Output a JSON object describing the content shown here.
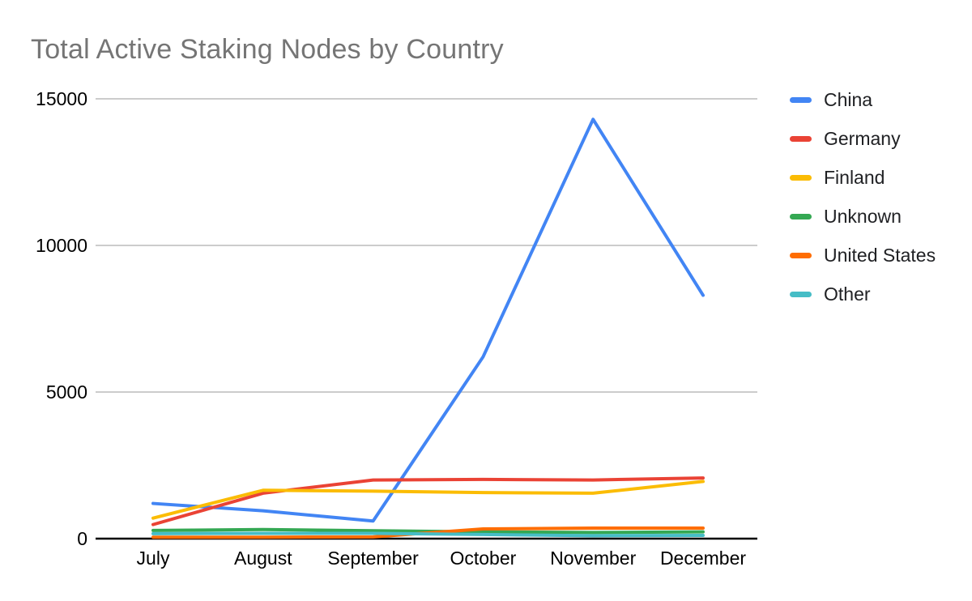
{
  "title": "Total Active Staking Nodes by Country",
  "title_color": "#757575",
  "legend": {
    "position": "right",
    "items": [
      {
        "label": "China",
        "color": "#4285F4"
      },
      {
        "label": "Germany",
        "color": "#EA4335"
      },
      {
        "label": "Finland",
        "color": "#FBBC04"
      },
      {
        "label": "Unknown",
        "color": "#34A853"
      },
      {
        "label": "United States",
        "color": "#FF6D01"
      },
      {
        "label": "Other",
        "color": "#46BDC6"
      }
    ]
  },
  "chart_data": {
    "type": "line",
    "title": "Total Active Staking Nodes by Country",
    "categories": [
      "July",
      "August",
      "September",
      "October",
      "November",
      "December"
    ],
    "series": [
      {
        "name": "China",
        "color": "#4285F4",
        "values": [
          1200,
          950,
          600,
          6200,
          14300,
          8300
        ]
      },
      {
        "name": "Germany",
        "color": "#EA4335",
        "values": [
          480,
          1550,
          2000,
          2020,
          2000,
          2070
        ]
      },
      {
        "name": "Finland",
        "color": "#FBBC04",
        "values": [
          700,
          1650,
          1620,
          1570,
          1550,
          1950
        ]
      },
      {
        "name": "Unknown",
        "color": "#34A853",
        "values": [
          280,
          310,
          270,
          230,
          210,
          230
        ]
      },
      {
        "name": "United States",
        "color": "#FF6D01",
        "values": [
          50,
          50,
          60,
          330,
          360,
          360
        ]
      },
      {
        "name": "Other",
        "color": "#46BDC6",
        "values": [
          170,
          180,
          180,
          140,
          100,
          110
        ]
      }
    ],
    "ylim": [
      0,
      15000
    ],
    "yticks": [
      0,
      5000,
      10000,
      15000
    ],
    "ytick_labels": [
      "0",
      "5000",
      "10000",
      "15000"
    ],
    "xlabel": "",
    "ylabel": "",
    "grid": "horizontal",
    "legend_position": "right",
    "gridline_color": "#cccccc",
    "axis_color": "#000000",
    "tick_label_color": "#000000",
    "line_width": 4
  }
}
